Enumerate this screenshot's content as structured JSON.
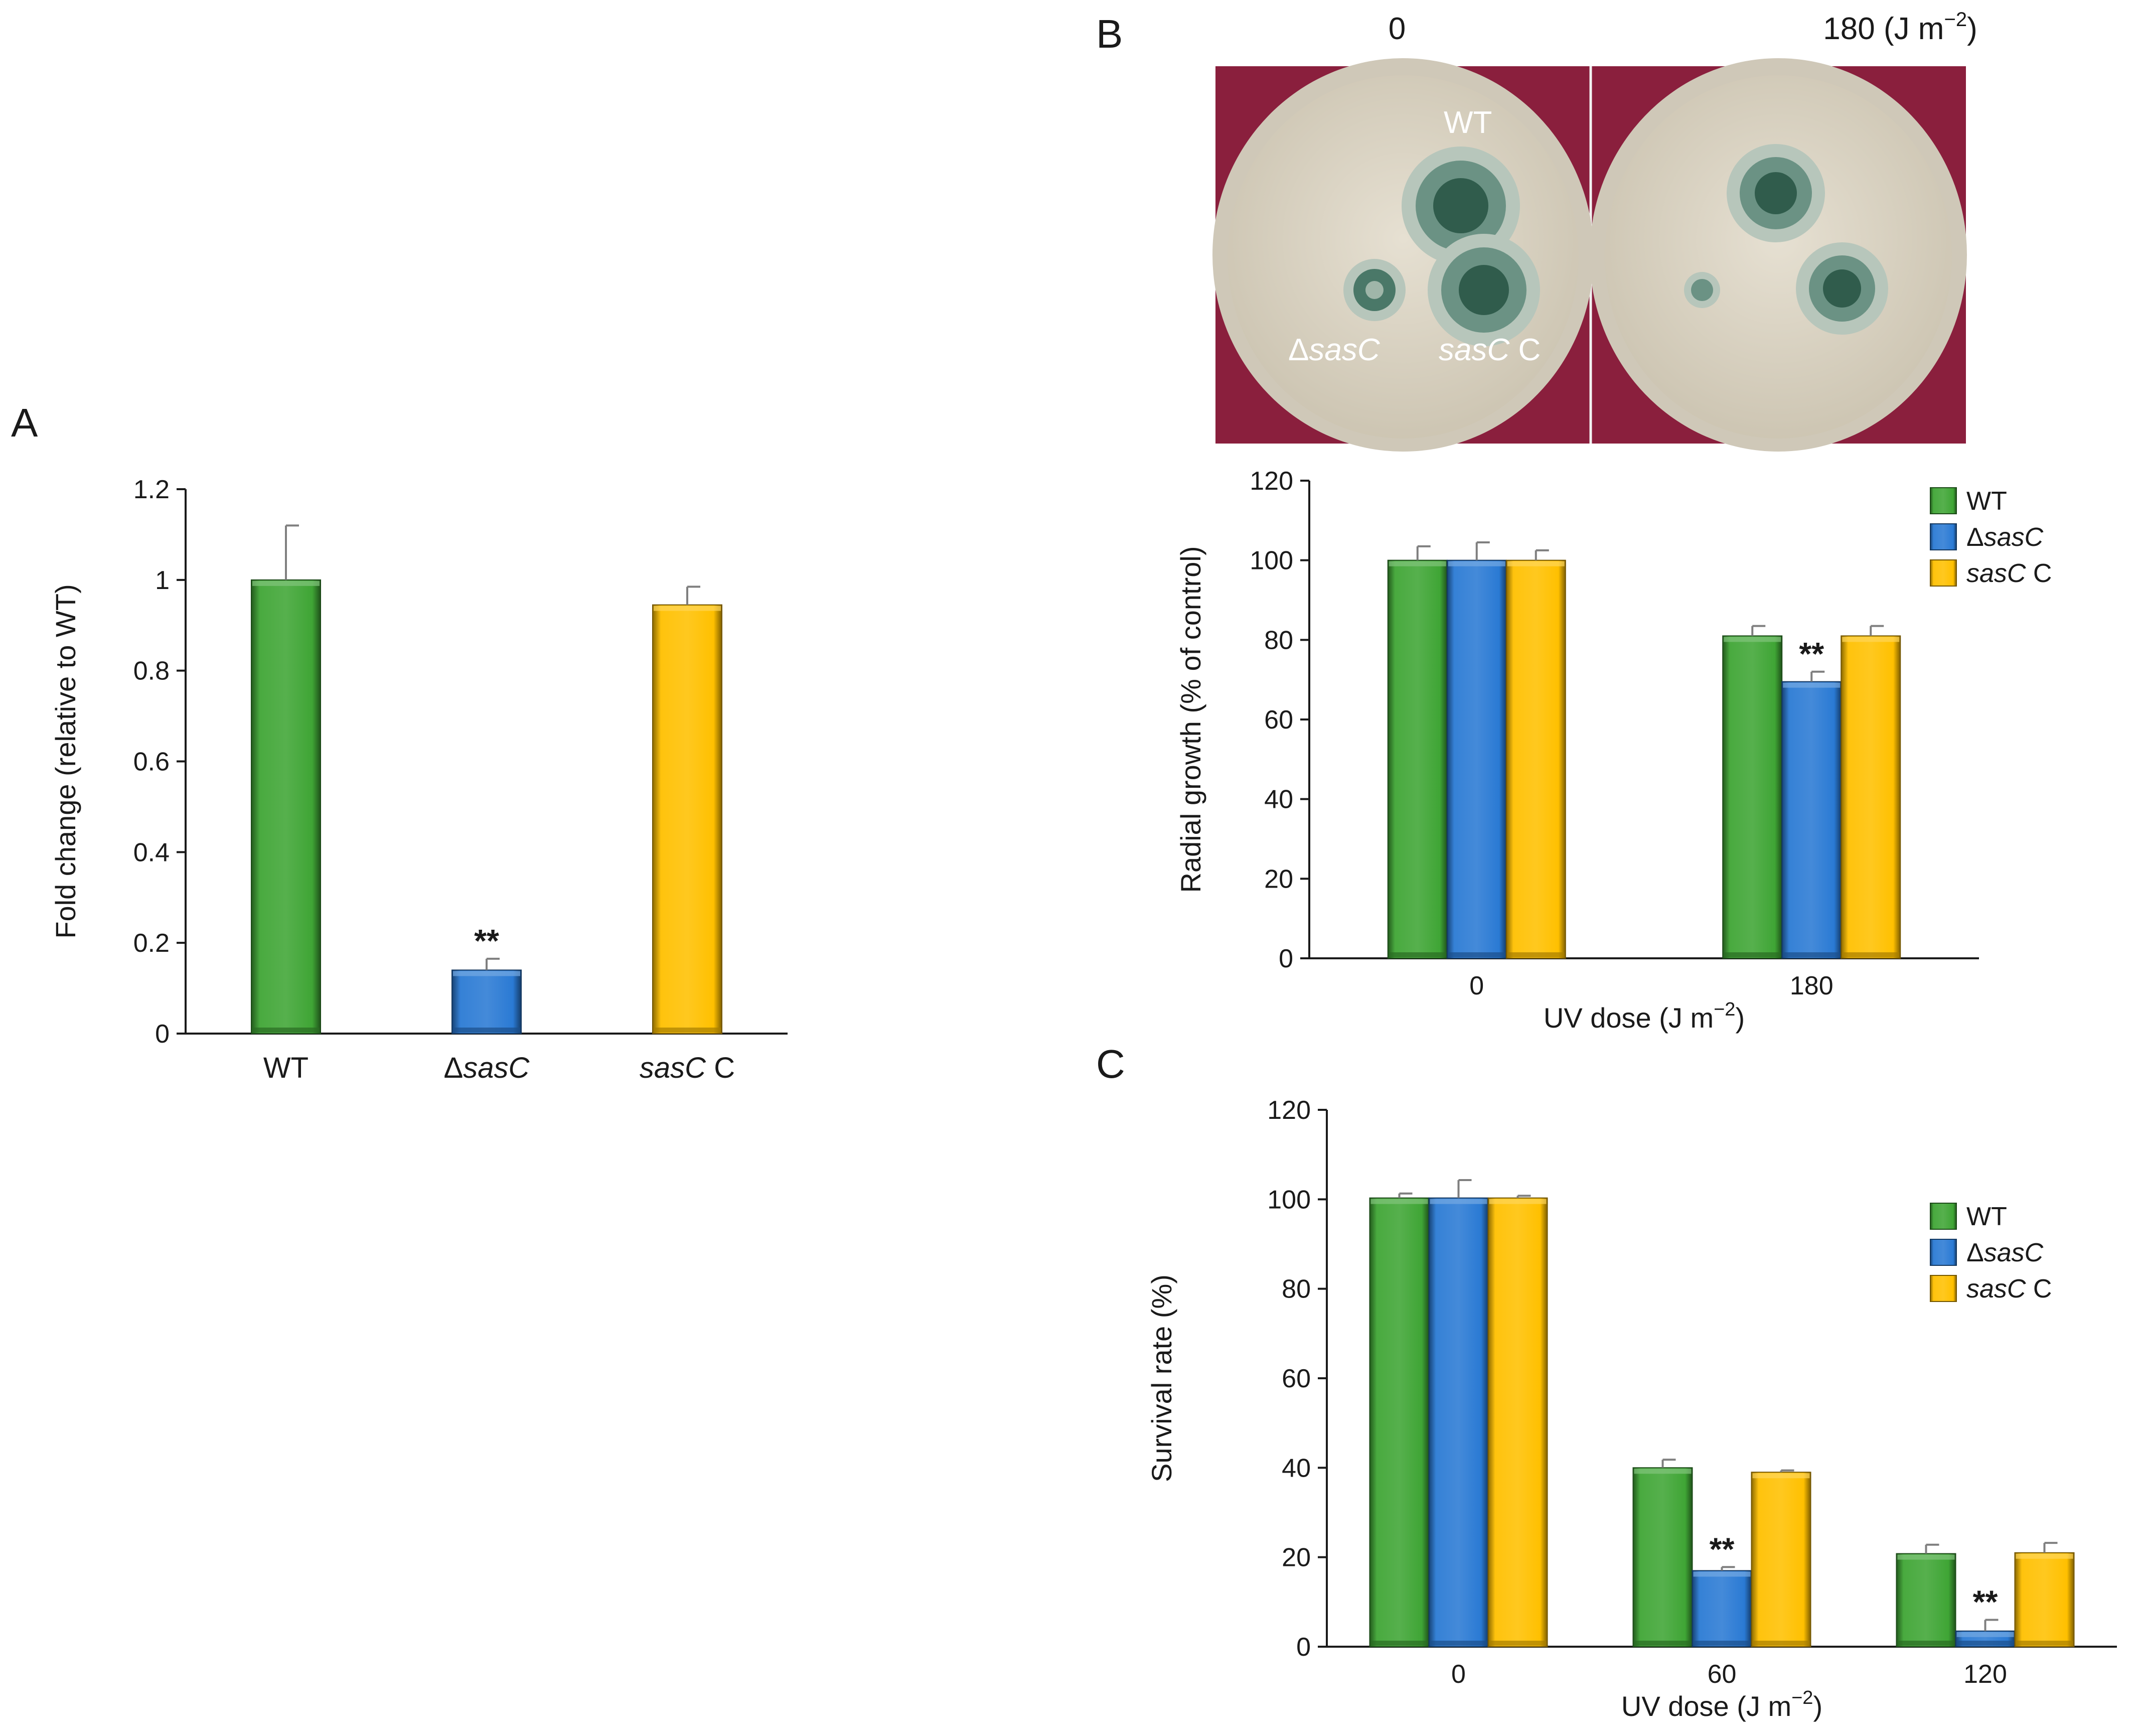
{
  "panels": {
    "a": "A",
    "b": "B",
    "c": "C"
  },
  "photo": {
    "dose_left": "0",
    "dose_right_value": "180",
    "dose_right_unit": "(J m",
    "dose_right_exp": "−2",
    "dose_right_close": ")",
    "label_wt": "WT",
    "label_delta_symbol": "Δ",
    "label_delta_gene": "sasC",
    "label_comp_gene": "sasC",
    "label_comp_suffix": " C",
    "colors": {
      "background": "#8a1f3d",
      "plate": "#d8d2c4",
      "colony": "#3c6e5c",
      "colony_halo": "#b8c8bc"
    }
  },
  "legend": {
    "wt": "WT",
    "delta_symbol": "Δ",
    "delta_gene": "sasC",
    "comp_gene": "sasC",
    "comp_suffix": " C"
  },
  "colors": {
    "wt": "#3fa535",
    "delta": "#2a7ad4",
    "comp": "#ffc000",
    "error_bar": "#7f7f7f",
    "axis": "#1a1a1a"
  },
  "chart_data": [
    {
      "id": "A",
      "type": "bar",
      "ylabel": "Fold change (relative to WT)",
      "xlabel": "",
      "ylim": [
        0,
        1.2
      ],
      "yticks": [
        0,
        0.2,
        0.4,
        0.6,
        0.8,
        1,
        1.2
      ],
      "ytick_labels": [
        "0",
        "0.2",
        "0.4",
        "0.6",
        "0.8",
        "1",
        "1.2"
      ],
      "categories": [
        "WT",
        "ΔsasC",
        "sasC C"
      ],
      "category_labels": [
        {
          "plain": "WT",
          "italic": "",
          "suffix": ""
        },
        {
          "plain": "Δ",
          "italic": "sasC",
          "suffix": ""
        },
        {
          "plain": "",
          "italic": "sasC",
          "suffix": " C"
        }
      ],
      "values": [
        1.0,
        0.14,
        0.945
      ],
      "errors": [
        0.12,
        0.025,
        0.04
      ],
      "bar_colors": [
        "wt",
        "delta",
        "comp"
      ],
      "annotations": [
        "",
        "**",
        ""
      ]
    },
    {
      "id": "B",
      "type": "bar",
      "ylabel": "Radial growth (% of control)",
      "xlabel": "UV dose (J m",
      "xlabel_exp": "−2",
      "xlabel_close": ")",
      "ylim": [
        0,
        120
      ],
      "yticks": [
        0,
        20,
        40,
        60,
        80,
        100,
        120
      ],
      "categories": [
        "0",
        "180"
      ],
      "legend_position": "top-right",
      "series": [
        {
          "key": "wt",
          "values": [
            100,
            81
          ],
          "errors": [
            3.5,
            2.5
          ],
          "annotations": [
            "",
            ""
          ]
        },
        {
          "key": "delta",
          "values": [
            100,
            69.5
          ],
          "errors": [
            4.5,
            2.5
          ],
          "annotations": [
            "",
            "**"
          ]
        },
        {
          "key": "comp",
          "values": [
            100,
            81
          ],
          "errors": [
            2.5,
            2.5
          ],
          "annotations": [
            "",
            ""
          ]
        }
      ]
    },
    {
      "id": "C",
      "type": "bar",
      "ylabel": "Survival rate (%)",
      "xlabel": "UV dose (J m",
      "xlabel_exp": "−2",
      "xlabel_close": ")",
      "ylim": [
        0,
        120
      ],
      "yticks": [
        0,
        20,
        40,
        60,
        80,
        100,
        120
      ],
      "categories": [
        "0",
        "60",
        "120"
      ],
      "legend_position": "top-right",
      "series": [
        {
          "key": "wt",
          "values": [
            100.3,
            40,
            20.8
          ],
          "errors": [
            1,
            1.8,
            2
          ],
          "annotations": [
            "",
            "",
            ""
          ]
        },
        {
          "key": "delta",
          "values": [
            100.3,
            17,
            3.5
          ],
          "errors": [
            4,
            0.8,
            2.5
          ],
          "annotations": [
            "",
            "**",
            "**"
          ]
        },
        {
          "key": "comp",
          "values": [
            100.3,
            39,
            21
          ],
          "errors": [
            0.5,
            0.4,
            2.2
          ],
          "annotations": [
            "",
            "",
            ""
          ]
        }
      ]
    }
  ]
}
